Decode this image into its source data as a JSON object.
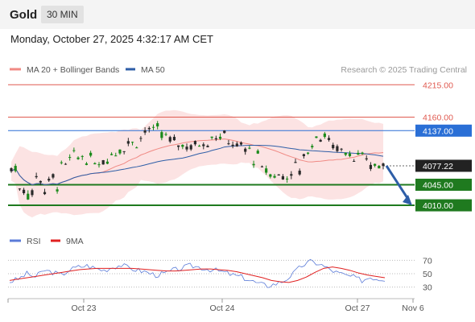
{
  "header": {
    "instrument": "Gold",
    "timeframe": "30 MIN"
  },
  "datetime": "Monday, October 27, 2025 4:32:17 AM CET",
  "legend": {
    "ma20": {
      "label": "MA 20 + Bollinger Bands",
      "color": "#f08a84"
    },
    "ma50": {
      "label": "MA 50",
      "color": "#2e5ea7"
    }
  },
  "copyright": "Research © 2025 Trading Central",
  "rsi_legend": {
    "rsi": {
      "label": "RSI",
      "color": "#5b7bd8"
    },
    "ma9": {
      "label": "9MA",
      "color": "#e02020"
    }
  },
  "colors": {
    "up": "#1a8a1a",
    "down": "#2a2a2a",
    "bollinger_fill": "#fbdcdc",
    "resistance": "#e05a50",
    "support": "#1f7a1f",
    "pivot": "#2a6fd6",
    "last": "#222222",
    "arrow": "#2e5ea7"
  },
  "chart_data": [
    {
      "type": "candlestick",
      "title": "Gold",
      "timeframe": "30 MIN",
      "x_ticks": [
        "Oct 23",
        "Oct 24",
        "Oct 27",
        "Nov 6"
      ],
      "ylim": [
        3995,
        4225
      ],
      "levels": [
        {
          "label": "4215.00",
          "value": 4215,
          "kind": "resistance"
        },
        {
          "label": "4160.00",
          "value": 4160,
          "kind": "resistance"
        },
        {
          "label": "4137.00",
          "value": 4137,
          "kind": "pivot"
        },
        {
          "label": "4077.22",
          "value": 4077.22,
          "kind": "last"
        },
        {
          "label": "4045.00",
          "value": 4045,
          "kind": "support"
        },
        {
          "label": "4010.00",
          "value": 4010,
          "kind": "support"
        }
      ],
      "ohlc_anchors": [
        [
          4075,
          4070
        ],
        [
          4050,
          4030
        ],
        [
          4045,
          4020
        ],
        [
          4070,
          4045
        ],
        [
          4060,
          4020
        ],
        [
          4070,
          4035
        ],
        [
          4085,
          4060
        ],
        [
          4100,
          4080
        ],
        [
          4100,
          4085
        ],
        [
          4095,
          4080
        ],
        [
          4090,
          4075
        ],
        [
          4095,
          4080
        ],
        [
          4110,
          4090
        ],
        [
          4120,
          4100
        ],
        [
          4125,
          4110
        ],
        [
          4135,
          4110
        ],
        [
          4150,
          4125
        ],
        [
          4145,
          4130
        ],
        [
          4140,
          4120
        ],
        [
          4125,
          4115
        ],
        [
          4118,
          4110
        ],
        [
          4115,
          4105
        ],
        [
          4120,
          4108
        ],
        [
          4130,
          4110
        ],
        [
          4140,
          4120
        ],
        [
          4135,
          4118
        ],
        [
          4120,
          4112
        ],
        [
          4115,
          4105
        ],
        [
          4110,
          4100
        ],
        [
          4100,
          4080
        ],
        [
          4080,
          4060
        ],
        [
          4070,
          4055
        ],
        [
          4065,
          4055
        ],
        [
          4068,
          4055
        ],
        [
          4085,
          4060
        ],
        [
          4110,
          4085
        ],
        [
          4130,
          4110
        ],
        [
          4140,
          4120
        ],
        [
          4125,
          4105
        ],
        [
          4115,
          4100
        ],
        [
          4108,
          4095
        ],
        [
          4100,
          4085
        ],
        [
          4095,
          4080
        ],
        [
          4085,
          4070
        ],
        [
          4080,
          4075
        ]
      ],
      "forecast_target": 4010
    },
    {
      "type": "line",
      "title": "RSI",
      "series": [
        {
          "name": "RSI",
          "values": [
            38,
            42,
            50,
            45,
            55,
            52,
            48,
            56,
            60,
            62,
            58,
            55,
            60,
            63,
            58,
            55,
            52,
            48,
            50,
            55,
            58,
            62,
            60,
            57,
            55,
            52,
            48,
            45,
            40,
            35,
            32,
            35,
            40,
            50,
            62,
            68,
            65,
            58,
            52,
            48,
            45,
            40,
            45,
            42
          ]
        },
        {
          "name": "9MA",
          "values": [
            40,
            42,
            44,
            46,
            48,
            50,
            52,
            54,
            56,
            57,
            58,
            58,
            58,
            58,
            58,
            57,
            56,
            55,
            54,
            54,
            55,
            56,
            57,
            57,
            56,
            55,
            53,
            50,
            47,
            44,
            40,
            38,
            37,
            40,
            45,
            52,
            58,
            60,
            58,
            55,
            51,
            48,
            46,
            44
          ]
        }
      ],
      "y_ticks": [
        70,
        50,
        30
      ],
      "ylim": [
        20,
        80
      ]
    }
  ]
}
